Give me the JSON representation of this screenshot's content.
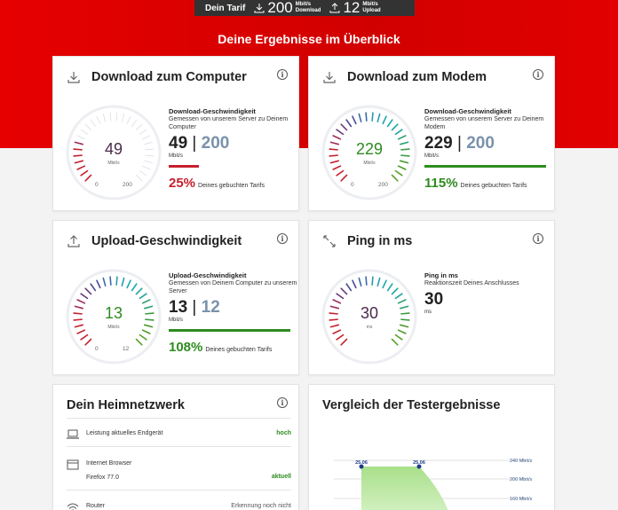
{
  "tarif": {
    "label": "Dein Tarif",
    "download_value": "200",
    "download_unit": "Mbit/s",
    "download_label": "Download",
    "upload_value": "12",
    "upload_unit": "Mbit/s",
    "upload_label": "Upload"
  },
  "hero_title": "Deine Ergebnisse im Überblick",
  "colors": {
    "brand_red": "#e60000",
    "green": "#2e8b1f",
    "red": "#c5202d",
    "plan_blue": "#7a92ab"
  },
  "cards": {
    "download_computer": {
      "title": "Download zum Computer",
      "gauge_value": "49",
      "gauge_unit": "Mbit/s",
      "gauge_min": "0",
      "gauge_max": "200",
      "label": "Download-Geschwindigkeit",
      "sub": "Gemessen von unserem Server zu Deinem Computer",
      "speed": "49",
      "plan": "200",
      "unit": "Mbit/s",
      "bar_fraction": 0.25,
      "percent": "25%",
      "percent_text": "Deines gebuchten Tarifs"
    },
    "download_modem": {
      "title": "Download zum Modem",
      "gauge_value": "229",
      "gauge_unit": "Mbit/s",
      "gauge_min": "0",
      "gauge_max": "200",
      "label": "Download-Geschwindigkeit",
      "sub": "Gemessen von unserem Server zu Deinem Modem",
      "speed": "229",
      "plan": "200",
      "unit": "Mbit/s",
      "bar_fraction": 1.0,
      "percent": "115%",
      "percent_text": "Deines gebuchten Tarifs"
    },
    "upload": {
      "title": "Upload-Geschwindigkeit",
      "gauge_value": "13",
      "gauge_unit": "Mbit/s",
      "gauge_min": "0",
      "gauge_max": "12",
      "label": "Upload-Geschwindigkeit",
      "sub": "Gemessen von Deinem Computer zu unserem Server",
      "speed": "13",
      "plan": "12",
      "unit": "Mbit/s",
      "bar_fraction": 1.0,
      "percent": "108%",
      "percent_text": "Deines gebuchten Tarifs"
    },
    "ping": {
      "title": "Ping in ms",
      "gauge_value": "30",
      "gauge_unit": "ms",
      "label": "Ping in ms",
      "sub": "Reaktionszeit Deines Anschlusses",
      "speed": "30",
      "unit": "ms"
    }
  },
  "heimnetz": {
    "title": "Dein Heimnetzwerk",
    "items": [
      {
        "name": "Leistung aktuelles Endgerät",
        "value": "hoch"
      },
      {
        "name": "Internet Browser",
        "sub": "Firefox 77.0",
        "value": "aktuell"
      },
      {
        "name": "Router",
        "value": "Erkennung noch nicht"
      }
    ]
  },
  "vergleich": {
    "title": "Vergleich der Testergebnisse",
    "point_labels": [
      "25.06",
      "25.06"
    ],
    "axis_labels": [
      "240 Mbit/s",
      "200 Mbit/s",
      "160 Mbit/s"
    ]
  }
}
